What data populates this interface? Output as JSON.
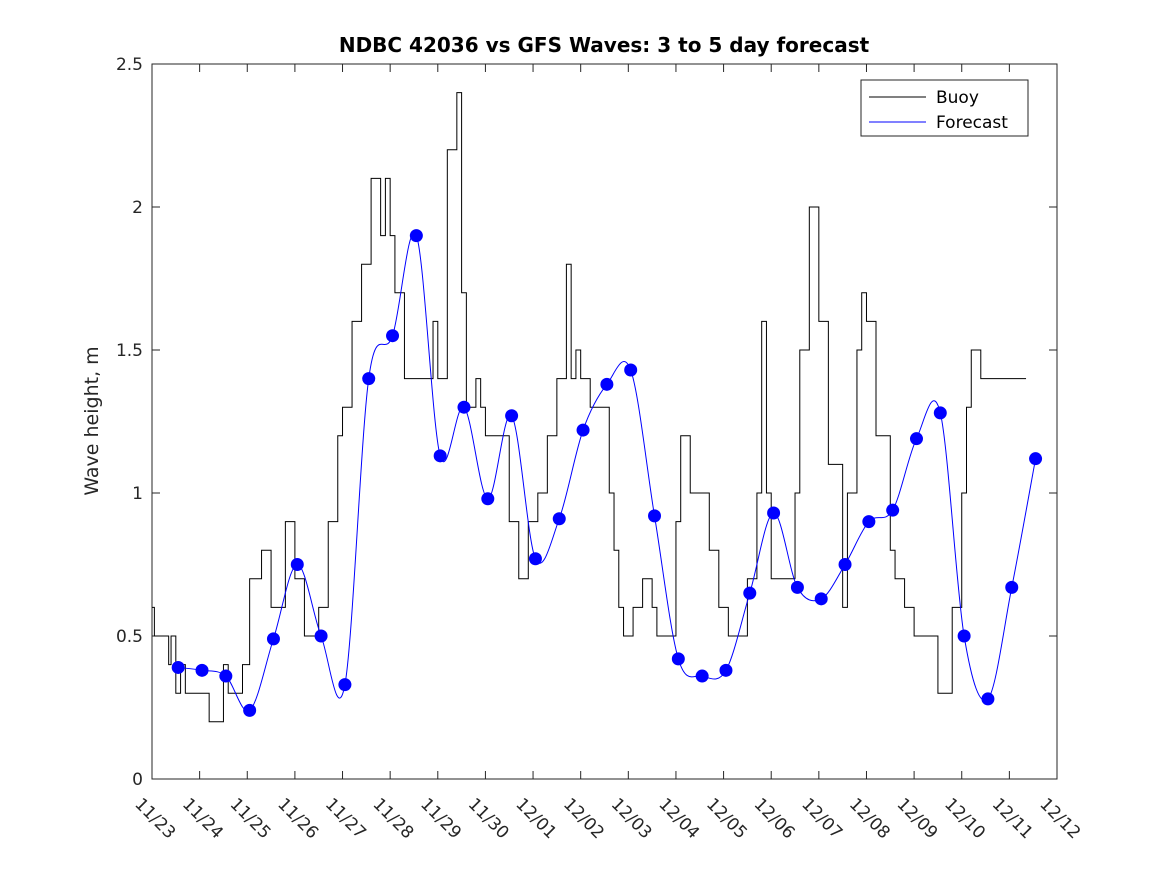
{
  "chart_data": {
    "type": "line",
    "title": "NDBC 42036 vs GFS Waves: 3 to 5 day forecast",
    "xlabel": "",
    "ylabel": "Wave height, m",
    "xlim": [
      0,
      19
    ],
    "ylim": [
      0,
      2.5
    ],
    "yticks": [
      0,
      0.5,
      1,
      1.5,
      2,
      2.5
    ],
    "ytick_labels": [
      "0",
      "0.5",
      "1",
      "1.5",
      "2",
      "2.5"
    ],
    "xtick_labels": [
      "11/23",
      "11/24",
      "11/25",
      "11/26",
      "11/27",
      "11/28",
      "11/29",
      "11/30",
      "12/01",
      "12/02",
      "12/03",
      "12/04",
      "12/05",
      "12/06",
      "12/07",
      "12/08",
      "12/09",
      "12/10",
      "12/11",
      "12/12"
    ],
    "legend": {
      "position": "top-right",
      "entries": [
        "Buoy",
        "Forecast"
      ]
    },
    "colors": {
      "buoy": "#000000",
      "forecast": "#0000ff"
    },
    "series": [
      {
        "name": "Buoy",
        "x": [
          0.0,
          0.05,
          0.1,
          0.15,
          0.2,
          0.3,
          0.35,
          0.4,
          0.5,
          0.6,
          0.7,
          0.75,
          0.9,
          1.0,
          1.2,
          1.5,
          1.6,
          1.7,
          1.8,
          1.9,
          2.05,
          2.15,
          2.3,
          2.5,
          2.8,
          3.0,
          3.2,
          3.3,
          3.4,
          3.5,
          3.7,
          3.9,
          4.0,
          4.2,
          4.4,
          4.6,
          4.8,
          4.9,
          5.0,
          5.1,
          5.3,
          5.5,
          5.7,
          5.9,
          6.0,
          6.2,
          6.4,
          6.5,
          6.6,
          6.8,
          6.9,
          7.0,
          7.3,
          7.5,
          7.7,
          7.9,
          8.0,
          8.1,
          8.3,
          8.5,
          8.7,
          8.8,
          8.9,
          9.0,
          9.2,
          9.4,
          9.6,
          9.7,
          9.8,
          9.9,
          10.1,
          10.3,
          10.5,
          10.6,
          10.8,
          11.0,
          11.1,
          11.3,
          11.5,
          11.7,
          11.9,
          12.1,
          12.3,
          12.5,
          12.7,
          12.8,
          12.9,
          13.0,
          13.3,
          13.5,
          13.6,
          13.8,
          14.0,
          14.2,
          14.5,
          14.6,
          14.8,
          14.9,
          15.0,
          15.2,
          15.5,
          15.6,
          15.8,
          16.0,
          16.2,
          16.4,
          16.5,
          16.6,
          16.8,
          17.0,
          17.1,
          17.2,
          17.4,
          17.6,
          17.8,
          18.0,
          18.2,
          18.35
        ],
        "values": [
          0.6,
          0.5,
          0.5,
          0.5,
          0.5,
          0.5,
          0.4,
          0.5,
          0.3,
          0.4,
          0.3,
          0.3,
          0.3,
          0.3,
          0.2,
          0.4,
          0.3,
          0.3,
          0.3,
          0.4,
          0.7,
          0.7,
          0.8,
          0.6,
          0.9,
          0.7,
          0.5,
          0.5,
          0.5,
          0.6,
          0.9,
          1.2,
          1.3,
          1.6,
          1.8,
          2.1,
          1.9,
          2.1,
          1.9,
          1.7,
          1.4,
          1.4,
          1.4,
          1.6,
          1.4,
          2.2,
          2.4,
          1.7,
          1.3,
          1.4,
          1.3,
          1.2,
          1.2,
          0.9,
          0.7,
          0.9,
          0.9,
          1.0,
          1.2,
          1.4,
          1.8,
          1.4,
          1.5,
          1.4,
          1.3,
          1.3,
          1.0,
          0.8,
          0.6,
          0.5,
          0.6,
          0.7,
          0.6,
          0.5,
          0.5,
          0.9,
          1.2,
          1.0,
          1.0,
          0.8,
          0.6,
          0.5,
          0.5,
          0.7,
          1.0,
          1.6,
          1.0,
          0.7,
          0.7,
          1.0,
          1.5,
          2.0,
          1.6,
          1.1,
          0.6,
          1.0,
          1.5,
          1.7,
          1.6,
          1.2,
          0.8,
          0.7,
          0.6,
          0.5,
          0.5,
          0.5,
          0.3,
          0.3,
          0.6,
          1.0,
          1.3,
          1.5,
          1.4,
          1.4,
          1.4,
          1.4,
          1.4,
          1.4
        ]
      },
      {
        "name": "Forecast",
        "x": [
          0.55,
          1.05,
          1.55,
          2.05,
          2.55,
          3.05,
          3.55,
          4.05,
          4.55,
          5.05,
          5.55,
          6.05,
          6.55,
          7.05,
          7.55,
          8.05,
          8.55,
          9.05,
          9.55,
          10.05,
          10.55,
          11.05,
          11.55,
          12.05,
          12.55,
          13.05,
          13.55,
          14.05,
          14.55,
          15.05,
          15.55,
          16.05,
          16.55,
          17.05,
          17.55,
          18.05,
          18.55
        ],
        "values": [
          0.39,
          0.38,
          0.36,
          0.24,
          0.49,
          0.75,
          0.5,
          0.33,
          1.4,
          1.55,
          1.9,
          1.13,
          1.3,
          0.98,
          1.27,
          0.77,
          0.91,
          1.22,
          1.38,
          1.43,
          0.92,
          0.42,
          0.36,
          0.38,
          0.65,
          0.93,
          0.67,
          0.63,
          0.75,
          0.9,
          0.94,
          1.19,
          1.28,
          0.5,
          0.28,
          0.67,
          1.12
        ]
      }
    ]
  }
}
